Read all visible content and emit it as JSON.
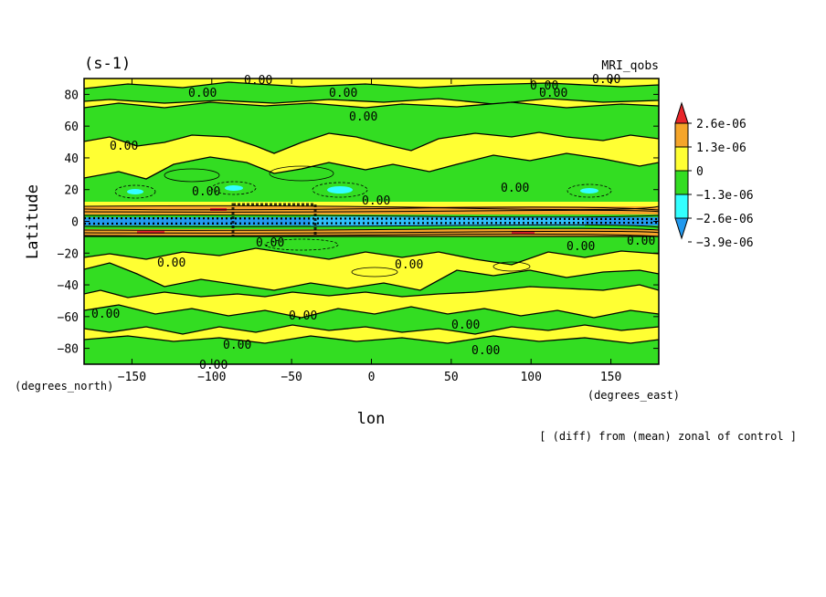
{
  "chart_data": {
    "type": "heatmap",
    "title_left": "(s-1)",
    "title_right": "MRI_qobs",
    "ylabel": "Latitude",
    "xlabel": "lon",
    "x_units": "(degrees_east)",
    "y_units": "(degrees_north)",
    "footnote": "[ (diff) from (mean) zonal of control ]",
    "xlim": [
      -180,
      180
    ],
    "ylim": [
      -90,
      90
    ],
    "x_ticks": [
      -150,
      -100,
      -50,
      0,
      50,
      100,
      150
    ],
    "y_ticks": [
      80,
      60,
      40,
      20,
      0,
      -20,
      -40,
      -60,
      -80
    ],
    "colorbar": {
      "labels": [
        "2.6e-06",
        "1.3e-06",
        "0",
        "-1.3e-06",
        "-2.6e-06",
        "-3.9e-06"
      ],
      "colors": [
        "#e8262a",
        "#f5a52a",
        "#ffff33",
        "#33dd22",
        "#33ffff",
        "#2299ee"
      ]
    },
    "contour_label": "0.00",
    "zonal_bands": [
      {
        "lat": [
          80,
          90
        ],
        "field": "+"
      },
      {
        "lat": [
          60,
          80
        ],
        "field": "-"
      },
      {
        "lat": [
          35,
          60
        ],
        "field": "+"
      },
      {
        "lat": [
          12,
          35
        ],
        "field": "-"
      },
      {
        "lat": [
          6,
          12
        ],
        "field": "+"
      },
      {
        "lat": [
          -6,
          6
        ],
        "field": "++/--"
      },
      {
        "lat": [
          -18,
          -6
        ],
        "field": "-"
      },
      {
        "lat": [
          -45,
          -18
        ],
        "field": "+"
      },
      {
        "lat": [
          -65,
          -45
        ],
        "field": "-"
      },
      {
        "lat": [
          -78,
          -65
        ],
        "field": "+"
      },
      {
        "lat": [
          -90,
          -78
        ],
        "field": "-"
      }
    ]
  }
}
